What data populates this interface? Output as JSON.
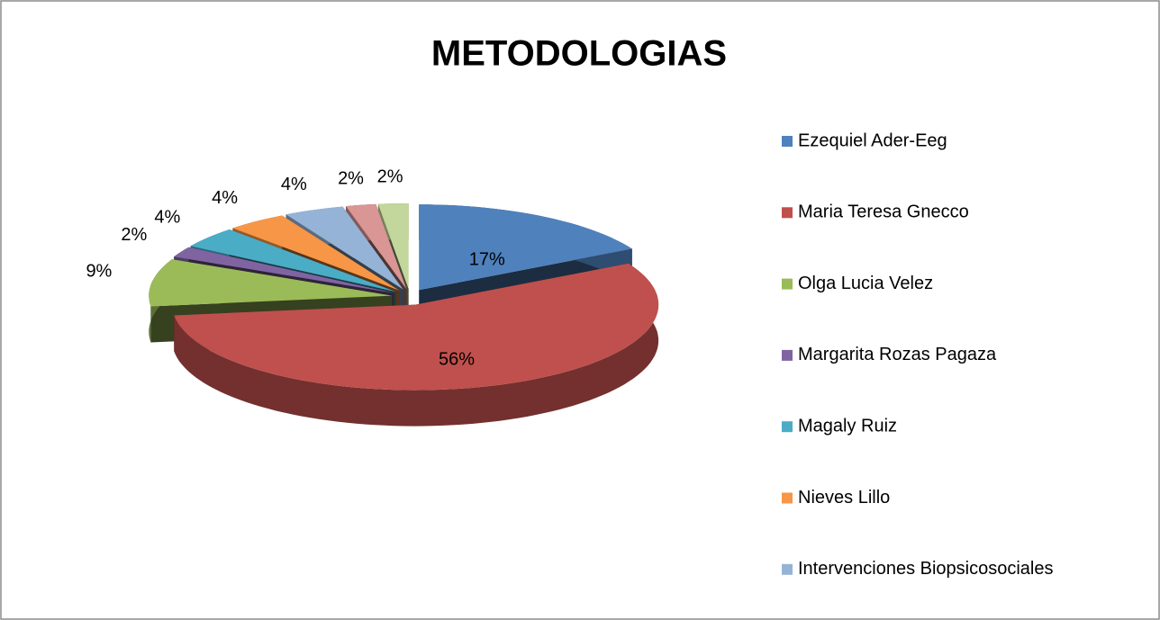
{
  "chart_data": {
    "type": "pie",
    "title": "METODOLOGIAS",
    "categories": [
      "Ezequiel Ader-Eeg",
      "Maria Teresa Gnecco",
      "Olga Lucia Velez",
      "Margarita Rozas Pagaza",
      "Magaly Ruiz",
      "Nieves Lillo",
      "Intervenciones Biopsicosociales",
      null,
      null
    ],
    "values": [
      17,
      56,
      9,
      2,
      4,
      4,
      4,
      2,
      2
    ],
    "value_labels": [
      "17%",
      "56%",
      "9%",
      "2%",
      "4%",
      "4%",
      "4%",
      "2%",
      "2%"
    ],
    "colors": [
      "#4f81bd",
      "#c0504d",
      "#9bbb59",
      "#8064a2",
      "#4bacc6",
      "#f79646",
      "#95b3d7",
      "#d99694",
      "#c3d69b"
    ],
    "legend": "right"
  }
}
